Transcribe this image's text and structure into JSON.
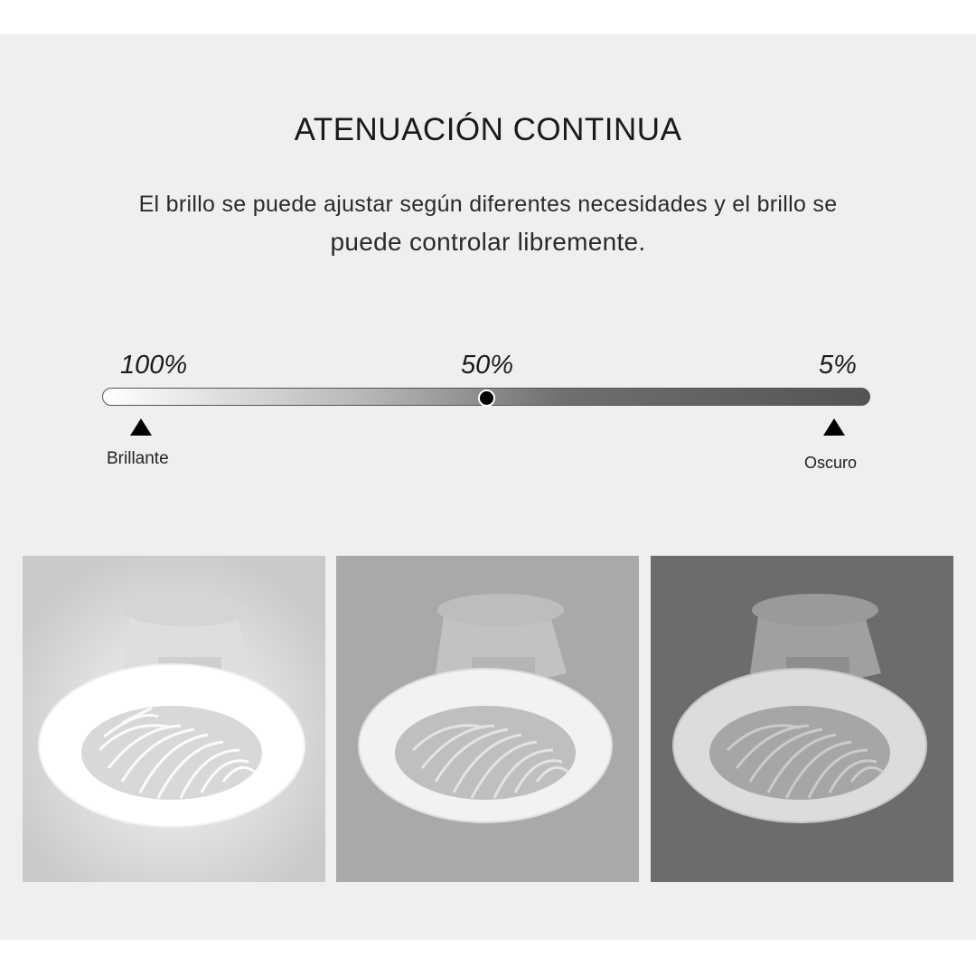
{
  "header": {
    "title": "ATENUACIÓN CONTINUA",
    "description_line1": "El brillo se puede ajustar según diferentes necesidades y el brillo se",
    "description_line2": "puede controlar libremente."
  },
  "dimmer": {
    "scale_labels": [
      "100%",
      "50%",
      "5%"
    ],
    "level": 0.5,
    "bright_label": "Brillante",
    "dark_label": "Oscuro"
  },
  "photos": [
    {
      "brightness": "100%",
      "wall_color": "#c9c9c9",
      "ring_color": "#ffffff",
      "glow": true
    },
    {
      "brightness": "50%",
      "wall_color": "#a9a9a9",
      "ring_color": "#f2f2f2",
      "glow": false
    },
    {
      "brightness": "5%",
      "wall_color": "#6c6c6c",
      "ring_color": "#dcdcdc",
      "glow": false
    }
  ]
}
